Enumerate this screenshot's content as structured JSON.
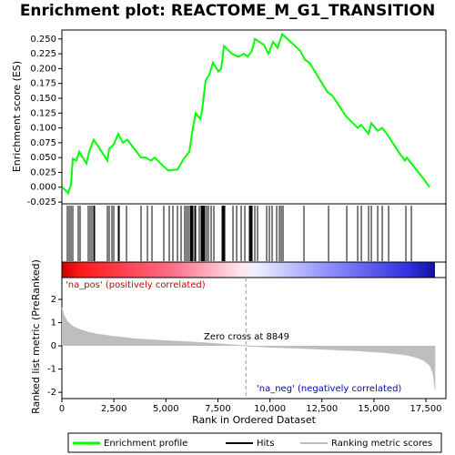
{
  "chart_data": [
    {
      "type": "line",
      "title": "Enrichment plot: REACTOME_M_G1_TRANSITION",
      "y_label": "Enrichment score (ES)",
      "xlim": [
        0,
        18460
      ],
      "ylim": [
        -0.028,
        0.265
      ],
      "yticks": [
        -0.025,
        {
          "value": 0,
          "label": "0.000"
        },
        0.025,
        {
          "value": 0.05,
          "label": "0.050"
        },
        0.075,
        {
          "value": 0.1,
          "label": "0.100"
        },
        0.125,
        {
          "value": 0.15,
          "label": "0.150"
        },
        0.175,
        {
          "value": 0.2,
          "label": "0.200"
        },
        0.225,
        {
          "value": 0.25,
          "label": "0.250"
        }
      ],
      "series": [
        {
          "name": "Enrichment profile",
          "color": "#00ff00",
          "x": [
            0,
            175,
            300,
            440,
            525,
            700,
            830,
            1180,
            1310,
            1530,
            2190,
            2275,
            2490,
            2710,
            2930,
            3150,
            3800,
            4020,
            4290,
            4460,
            4900,
            5120,
            5560,
            5690,
            5900,
            6125,
            6300,
            6430,
            6650,
            6740,
            6910,
            7090,
            7260,
            7525,
            7660,
            7790,
            8180,
            8490,
            8750,
            8925,
            9140,
            9275,
            9710,
            9930,
            10150,
            10370,
            10590,
            11460,
            11680,
            11900,
            12775,
            12990,
            13650,
            14220,
            14390,
            14740,
            14875,
            15180,
            15400,
            15620,
            16275,
            16490,
            16580,
            16800,
            17370,
            17675
          ],
          "values": [
            0,
            -0.005,
            -0.01,
            0.005,
            0.048,
            0.045,
            0.06,
            0.04,
            0.06,
            0.08,
            0.045,
            0.065,
            0.072,
            0.09,
            0.075,
            0.08,
            0.05,
            0.05,
            0.045,
            0.05,
            0.035,
            0.028,
            0.03,
            0.038,
            0.05,
            0.06,
            0.1,
            0.125,
            0.115,
            0.13,
            0.18,
            0.19,
            0.21,
            0.195,
            0.2,
            0.238,
            0.225,
            0.22,
            0.225,
            0.22,
            0.23,
            0.25,
            0.24,
            0.225,
            0.245,
            0.235,
            0.258,
            0.23,
            0.215,
            0.21,
            0.16,
            0.155,
            0.12,
            0.1,
            0.105,
            0.09,
            0.108,
            0.095,
            0.1,
            0.09,
            0.055,
            0.045,
            0.05,
            0.04,
            0.015,
            0
          ]
        }
      ],
      "hits": {
        "name": "Hits",
        "color": "#000000",
        "x": [
          262,
          350,
          437,
          525,
          787,
          875,
          1269,
          1356,
          1444,
          1531,
          1575,
          2187,
          2275,
          2406,
          2494,
          2712,
          2756,
          3106,
          3806,
          4112,
          4331,
          4900,
          5162,
          5337,
          5556,
          5731,
          5906,
          5994,
          6081,
          6169,
          6212,
          6256,
          6300,
          6387,
          6431,
          6606,
          6694,
          6737,
          6781,
          6825,
          6869,
          6956,
          7044,
          7175,
          7306,
          7700,
          7744,
          7787,
          7831,
          8225,
          8400,
          8619,
          8794,
          9012,
          9056,
          9100,
          9144,
          9275,
          9406,
          9844,
          9975,
          10106,
          10325,
          10456,
          10544,
          10631,
          11637,
          12819,
          13694,
          14219,
          14394,
          14744,
          14875,
          15181,
          15400,
          15706,
          16537,
          16800
        ]
      }
    },
    {
      "type": "area",
      "y_label": "Ranked list metric (PreRanked)",
      "x_label": "Rank in Ordered Dataset",
      "xlim": [
        0,
        18460
      ],
      "ylim": [
        -2.27,
        2.94
      ],
      "xticks": [
        0,
        {
          "value": 2500,
          "label": "2,500"
        },
        {
          "value": 5000,
          "label": "5,000"
        },
        {
          "value": 7500,
          "label": "7,500"
        },
        {
          "value": 10000,
          "label": "10,000"
        },
        {
          "value": 12500,
          "label": "12,500"
        },
        {
          "value": 15000,
          "label": "15,000"
        },
        {
          "value": 17500,
          "label": "17,500"
        }
      ],
      "yticks": [
        -2,
        -1,
        0,
        1,
        2
      ],
      "series": [
        {
          "name": "Ranking metric scores",
          "color": "#bebebe",
          "x": [
            0,
            100,
            250,
            500,
            800,
            1200,
            1700,
            2500,
            3500,
            5000,
            6500,
            8000,
            8849,
            10000,
            12000,
            14000,
            15500,
            16500,
            17000,
            17400,
            17700,
            17850,
            17950
          ],
          "values": [
            1.64,
            1.3,
            1.05,
            0.85,
            0.72,
            0.6,
            0.5,
            0.4,
            0.3,
            0.22,
            0.15,
            0.05,
            0,
            -0.05,
            -0.12,
            -0.2,
            -0.28,
            -0.38,
            -0.48,
            -0.62,
            -0.85,
            -1.2,
            -1.9
          ]
        }
      ],
      "zero_cross": 8849,
      "annotations": [
        "'na_pos' (positively correlated)",
        "Zero cross at 8849",
        "'na_neg' (negatively correlated)"
      ]
    }
  ]
}
